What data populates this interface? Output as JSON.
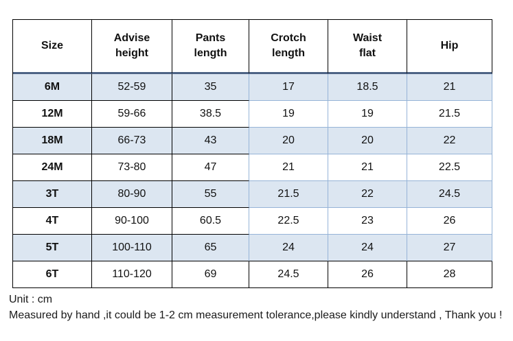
{
  "chart_data": {
    "type": "table",
    "columns": [
      "Size",
      "Advise\nheight",
      "Pants\nlength",
      "Crotch\nlength",
      "Waist\nflat",
      "Hip"
    ],
    "rows": [
      [
        "6M",
        "52-59",
        "35",
        "17",
        "18.5",
        "21"
      ],
      [
        "12M",
        "59-66",
        "38.5",
        "19",
        "19",
        "21.5"
      ],
      [
        "18M",
        "66-73",
        "43",
        "20",
        "20",
        "22"
      ],
      [
        "24M",
        "73-80",
        "47",
        "21",
        "21",
        "22.5"
      ],
      [
        "3T",
        "80-90",
        "55",
        "21.5",
        "22",
        "24.5"
      ],
      [
        "4T",
        "90-100",
        "60.5",
        "22.5",
        "23",
        "26"
      ],
      [
        "5T",
        "100-110",
        "65",
        "24",
        "24",
        "27"
      ],
      [
        "6T",
        "110-120",
        "69",
        "24.5",
        "26",
        "28"
      ]
    ],
    "unit": "cm",
    "layout_hints": {
      "alternating_rows": true,
      "grid": true
    }
  },
  "footer": {
    "unit_label": "Unit : cm",
    "note": "Measured by hand ,it could be 1-2 cm measurement tolerance,please kindly understand , Thank you !"
  },
  "colors": {
    "row_alt_bg": "#dce6f1",
    "grid_blue": "#95b3d7",
    "header_rule": "#4d6384",
    "grid_black": "#000000"
  }
}
